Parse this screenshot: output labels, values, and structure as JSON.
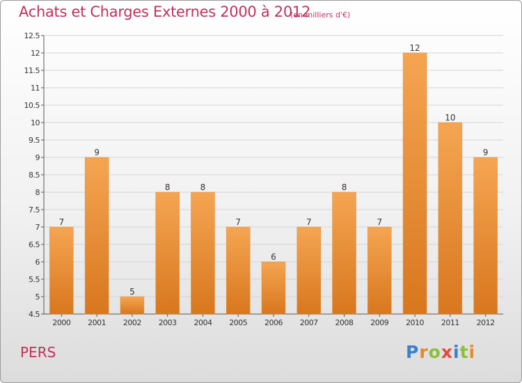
{
  "header": {
    "title": "Achats et Charges Externes 2000 à 2012",
    "subtitle": "(en milliers d'€)"
  },
  "footer": {
    "commune": "PERS",
    "logo_text": "Proxiti"
  },
  "colors": {
    "title": "#c0305a",
    "bar_top": "#f5a552",
    "bar_bottom": "#d8771e",
    "grid": "#d4d4d4"
  },
  "chart_data": {
    "type": "bar",
    "title": "Achats et Charges Externes 2000 à 2012",
    "subtitle": "(en milliers d'€)",
    "xlabel": "",
    "ylabel": "",
    "categories": [
      "2000",
      "2001",
      "2002",
      "2003",
      "2004",
      "2005",
      "2006",
      "2007",
      "2008",
      "2009",
      "2010",
      "2011",
      "2012"
    ],
    "values": [
      7,
      9,
      5,
      8,
      8,
      7,
      6,
      7,
      8,
      7,
      12,
      10,
      9
    ],
    "data_labels": [
      "7",
      "9",
      "5",
      "8",
      "8",
      "7",
      "6",
      "7",
      "8",
      "7",
      "12",
      "10",
      "9"
    ],
    "ylim": [
      4.5,
      12.5
    ],
    "yticks": [
      4.5,
      5,
      5.5,
      6,
      6.5,
      7,
      7.5,
      8,
      8.5,
      9,
      9.5,
      10,
      10.5,
      11,
      11.5,
      12,
      12.5
    ],
    "ytick_labels": [
      "4.5",
      "5",
      "5.5",
      "6",
      "6.5",
      "7",
      "7.5",
      "8",
      "8.5",
      "9",
      "9.5",
      "10",
      "10.5",
      "11",
      "11.5",
      "12",
      "12.5"
    ],
    "grid": true,
    "legend": "none"
  }
}
